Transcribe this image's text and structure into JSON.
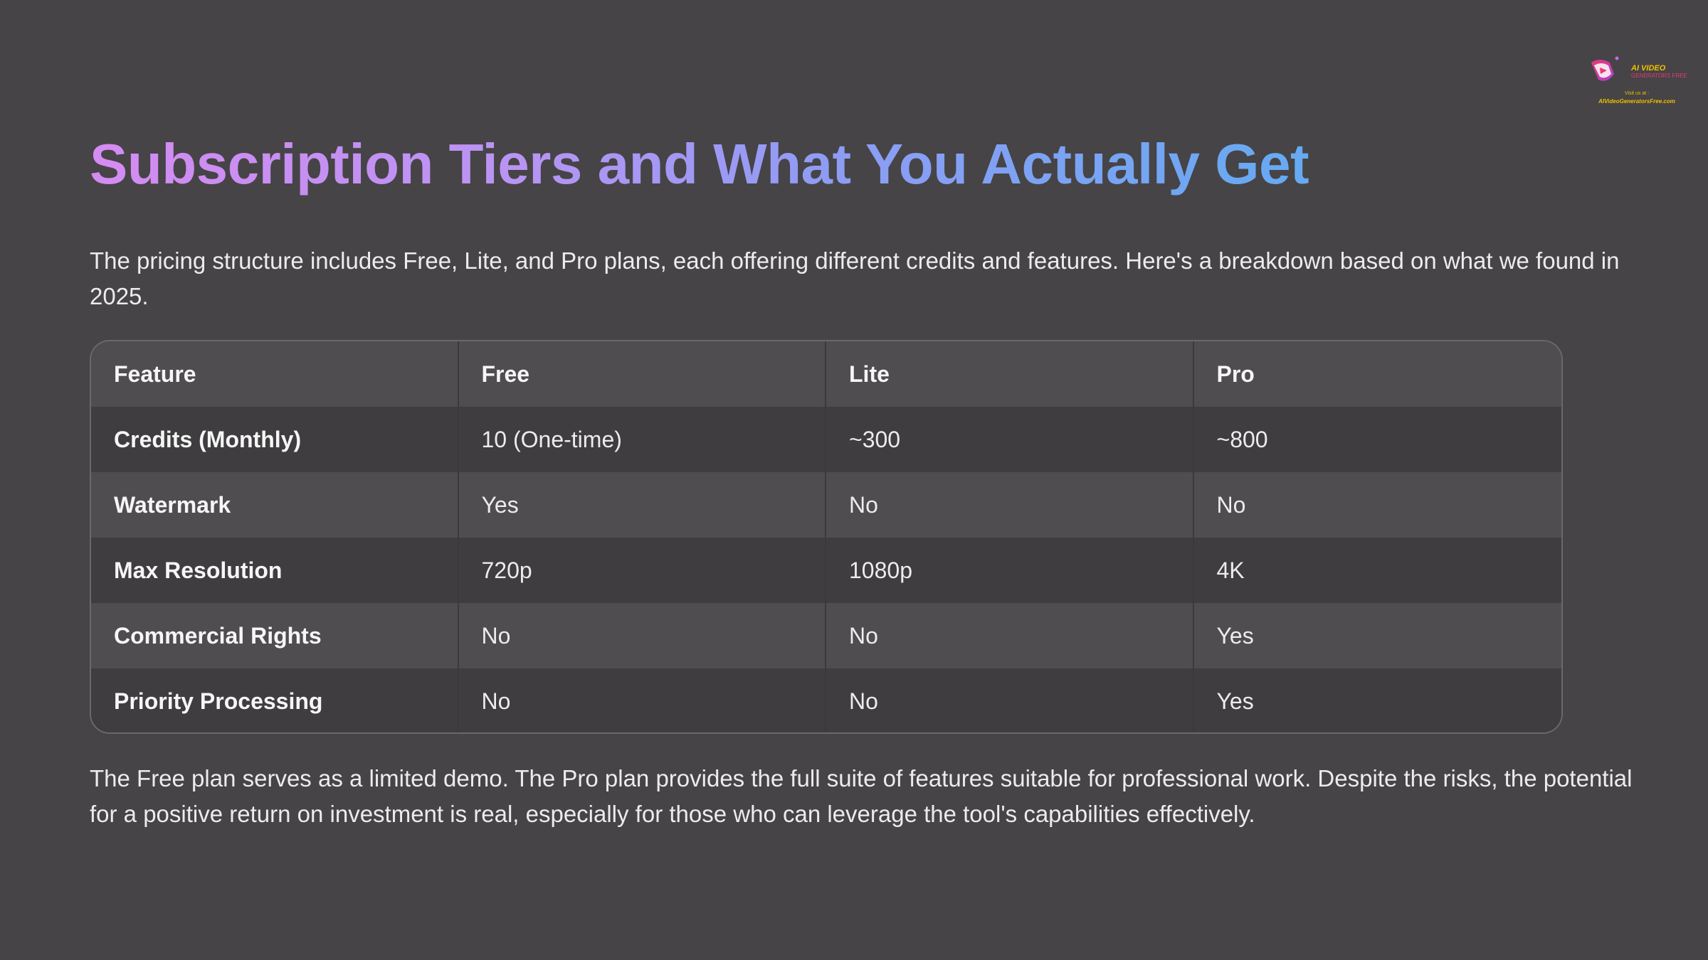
{
  "brand": {
    "logo_line1": "AI VIDEO",
    "logo_line2": "GENERATORS FREE",
    "logo_line3": "Visit us at :",
    "logo_line4": "AIVideoGeneratorsFree.com"
  },
  "title": "Subscription Tiers and What You Actually Get",
  "intro": "The pricing structure includes Free, Lite, and Pro plans, each offering different credits and features. Here's a breakdown based on what we found in 2025.",
  "table": {
    "headers": [
      "Feature",
      "Free",
      "Lite",
      "Pro"
    ],
    "rows": [
      [
        "Credits (Monthly)",
        "10 (One-time)",
        "~300",
        "~800"
      ],
      [
        "Watermark",
        "Yes",
        "No",
        "No"
      ],
      [
        "Max Resolution",
        "720p",
        "1080p",
        "4K"
      ],
      [
        "Commercial Rights",
        "No",
        "No",
        "Yes"
      ],
      [
        "Priority Processing",
        "No",
        "No",
        "Yes"
      ]
    ]
  },
  "outro": "The Free plan serves as a limited demo. The Pro plan provides the full suite of features suitable for professional work. Despite the risks, the potential for a positive return on investment is real, especially for those who can leverage the tool's capabilities effectively.",
  "colors": {
    "background": "#464446",
    "title_gradient_start": "#d58bf2",
    "title_gradient_end": "#66aaf2",
    "table_row_light": "#4f4d4f",
    "table_row_dark": "#3f3d3f"
  }
}
